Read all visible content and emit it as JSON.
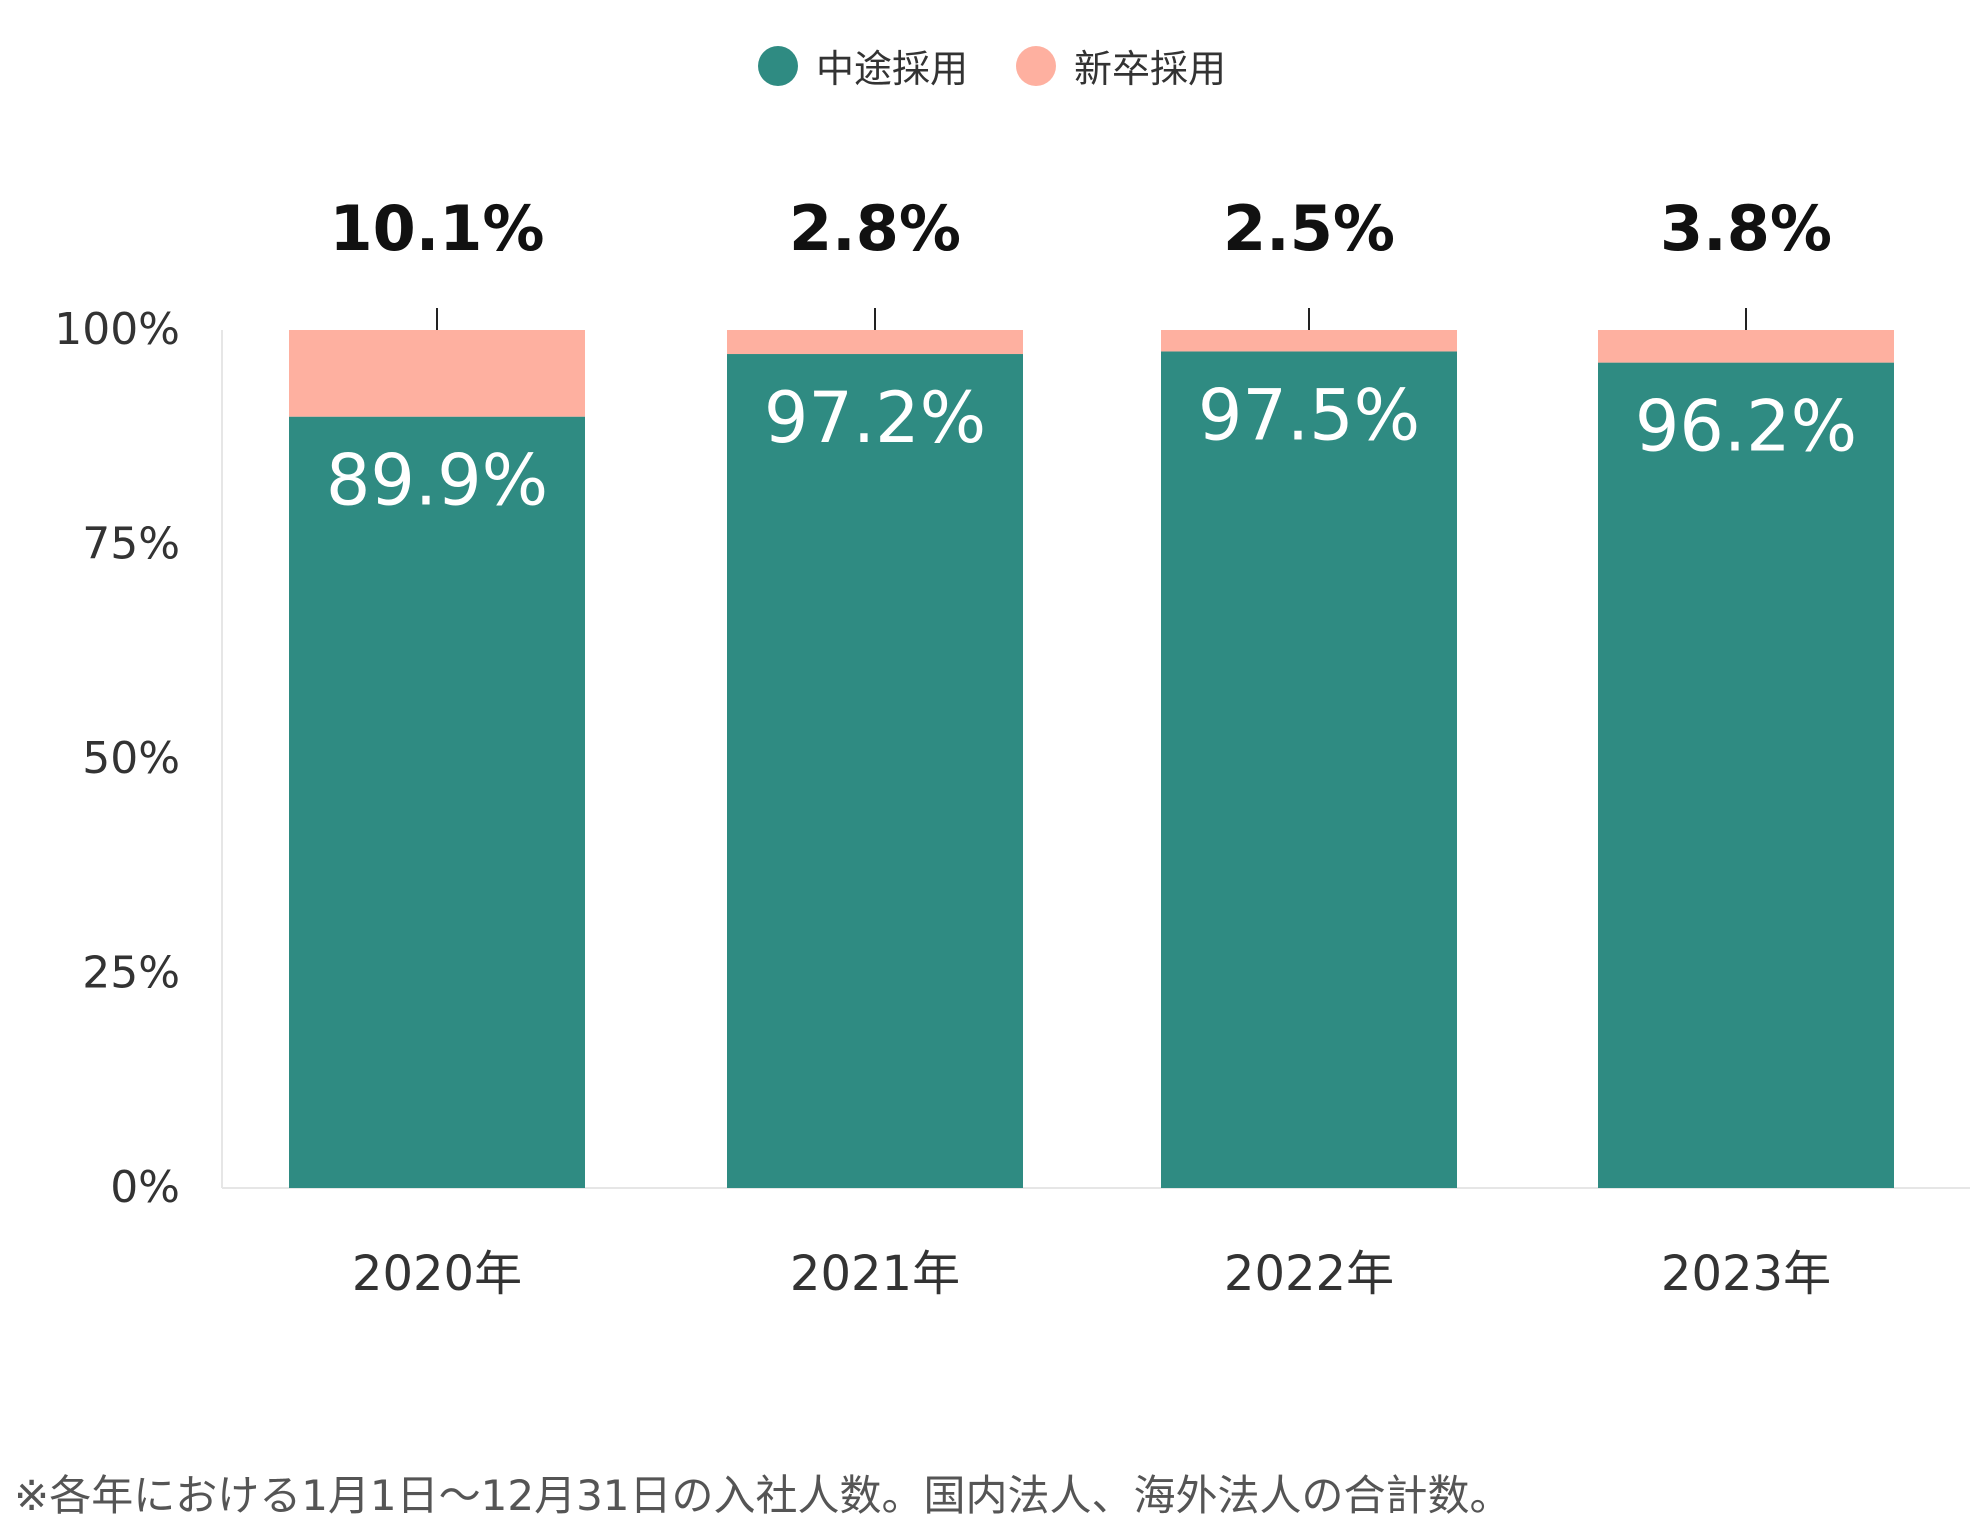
{
  "legend": [
    {
      "label": "中途採用",
      "color": "#2f8b82"
    },
    {
      "label": "新卒採用",
      "color": "#feb0a0"
    }
  ],
  "chart_data": {
    "type": "bar",
    "stacked": true,
    "categories": [
      "2020年",
      "2021年",
      "2022年",
      "2023年"
    ],
    "series": [
      {
        "name": "中途採用",
        "values": [
          89.9,
          97.2,
          97.5,
          96.2
        ],
        "labels": [
          "89.9%",
          "97.2%",
          "97.5%",
          "96.2%"
        ],
        "color": "#2f8b82"
      },
      {
        "name": "新卒採用",
        "values": [
          10.1,
          2.8,
          2.5,
          3.8
        ],
        "labels": [
          "10.1%",
          "2.8%",
          "2.5%",
          "3.8%"
        ],
        "color": "#feb0a0"
      }
    ],
    "ylim": [
      0,
      100
    ],
    "yticks": [
      "0%",
      "25%",
      "50%",
      "75%",
      "100%"
    ],
    "ytick_values": [
      0,
      25,
      50,
      75,
      100
    ],
    "legend_position": "top-center",
    "grid": false
  },
  "footnote": "※各年における1月1日〜12月31日の入社人数。国内法人、海外法人の合計数。"
}
